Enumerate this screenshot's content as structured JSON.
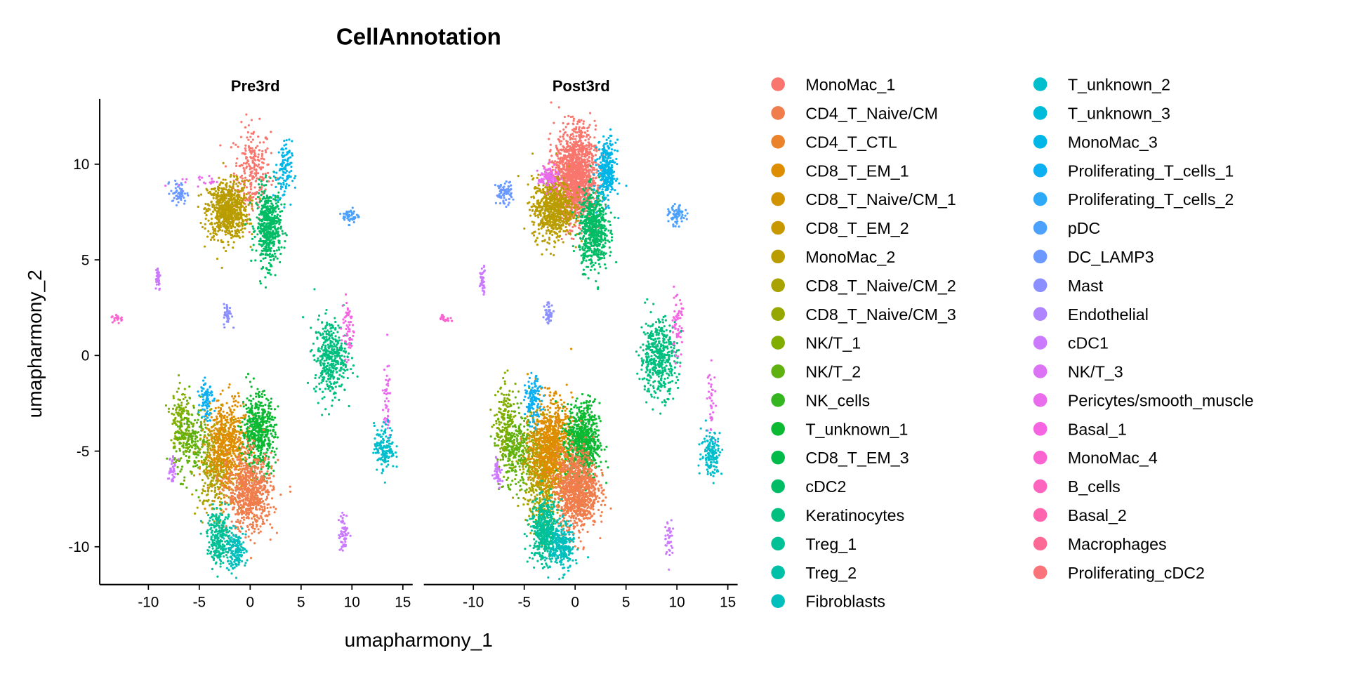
{
  "chart_data": {
    "type": "scatter",
    "title": "CellAnnotation",
    "xlabel": "umapharmony_1",
    "ylabel": "umapharmony_2",
    "xlim": [
      -14.8,
      16
    ],
    "ylim": [
      -12,
      13.4
    ],
    "xticks": [
      -10,
      -5,
      0,
      5,
      10,
      15
    ],
    "yticks": [
      -10,
      -5,
      0,
      5,
      10
    ],
    "grid": false,
    "legend_position": "right",
    "legend": [
      {
        "label": "MonoMac_1",
        "color": "#F8766D"
      },
      {
        "label": "CD4_T_Naive/CM",
        "color": "#F07D4C"
      },
      {
        "label": "CD4_T_CTL",
        "color": "#EB832C"
      },
      {
        "label": "CD8_T_EM_1",
        "color": "#DE8C00"
      },
      {
        "label": "CD8_T_Naive/CM_1",
        "color": "#D29300"
      },
      {
        "label": "CD8_T_EM_2",
        "color": "#C89800"
      },
      {
        "label": "MonoMac_2",
        "color": "#B99D00"
      },
      {
        "label": "CD8_T_Naive/CM_2",
        "color": "#A8A300"
      },
      {
        "label": "CD8_T_Naive/CM_3",
        "color": "#95A700"
      },
      {
        "label": "NK/T_1",
        "color": "#81AD00"
      },
      {
        "label": "NK/T_2",
        "color": "#5EB10E"
      },
      {
        "label": "NK_cells",
        "color": "#35B520"
      },
      {
        "label": "T_unknown_1",
        "color": "#0CB932"
      },
      {
        "label": "CD8_T_EM_3",
        "color": "#00BB4A"
      },
      {
        "label": "cDC2",
        "color": "#00BD65"
      },
      {
        "label": "Keratinocytes",
        "color": "#00BF7F"
      },
      {
        "label": "Treg_1",
        "color": "#00C096"
      },
      {
        "label": "Treg_2",
        "color": "#00C0A8"
      },
      {
        "label": "Fibroblasts",
        "color": "#00BFBC"
      },
      {
        "label": "T_unknown_2",
        "color": "#00BECB"
      },
      {
        "label": "T_unknown_3",
        "color": "#00BAD9"
      },
      {
        "label": "MonoMac_3",
        "color": "#00B6E7"
      },
      {
        "label": "Proliferating_T_cells_1",
        "color": "#0CAFF2"
      },
      {
        "label": "Proliferating_T_cells_2",
        "color": "#2DA9F8"
      },
      {
        "label": "pDC",
        "color": "#4CA1FD"
      },
      {
        "label": "DC_LAMP3",
        "color": "#6B99FF"
      },
      {
        "label": "Mast",
        "color": "#8C8FFF"
      },
      {
        "label": "Endothelial",
        "color": "#AE84FF"
      },
      {
        "label": "cDC1",
        "color": "#CB7AFD"
      },
      {
        "label": "NK/T_3",
        "color": "#DB73F4"
      },
      {
        "label": "Pericytes/smooth_muscle",
        "color": "#E86CEC"
      },
      {
        "label": "Basal_1",
        "color": "#F664E2"
      },
      {
        "label": "MonoMac_4",
        "color": "#F964D0"
      },
      {
        "label": "B_cells",
        "color": "#FC64BE"
      },
      {
        "label": "Basal_2",
        "color": "#FE65AE"
      },
      {
        "label": "Macrophages",
        "color": "#FC6995"
      },
      {
        "label": "Proliferating_cDC2",
        "color": "#F9737A"
      }
    ],
    "panels": [
      {
        "name": "Pre3rd",
        "clusters": [
          {
            "c": 0,
            "x": 0.2,
            "y": 9.6,
            "sx": 0.9,
            "sy": 1.2,
            "n": 260
          },
          {
            "c": 6,
            "x": -2.2,
            "y": 7.6,
            "sx": 1.0,
            "sy": 0.75,
            "n": 700
          },
          {
            "c": 14,
            "x": 1.8,
            "y": 6.7,
            "sx": 0.6,
            "sy": 1.0,
            "n": 500
          },
          {
            "c": 21,
            "x": 3.3,
            "y": 9.6,
            "sx": 0.4,
            "sy": 0.8,
            "n": 110
          },
          {
            "c": 25,
            "x": -7.0,
            "y": 8.5,
            "sx": 0.4,
            "sy": 0.3,
            "n": 60
          },
          {
            "c": 30,
            "x": -5.0,
            "y": 9.1,
            "sx": 1.0,
            "sy": 0.15,
            "n": 20
          },
          {
            "c": 24,
            "x": 9.9,
            "y": 7.3,
            "sx": 0.4,
            "sy": 0.2,
            "n": 50
          },
          {
            "c": 28,
            "x": -9.1,
            "y": 4.1,
            "sx": 0.15,
            "sy": 0.35,
            "n": 40
          },
          {
            "c": 32,
            "x": -13.0,
            "y": 1.95,
            "sx": 0.3,
            "sy": 0.1,
            "n": 20
          },
          {
            "c": 26,
            "x": -2.2,
            "y": 2.1,
            "sx": 0.2,
            "sy": 0.3,
            "n": 40
          },
          {
            "c": 15,
            "x": 7.9,
            "y": -0.1,
            "sx": 0.8,
            "sy": 1.0,
            "n": 400
          },
          {
            "c": 31,
            "x": 9.6,
            "y": 1.5,
            "sx": 0.3,
            "sy": 0.8,
            "n": 60
          },
          {
            "c": 30,
            "x": 13.4,
            "y": -2.5,
            "sx": 0.2,
            "sy": 1.0,
            "n": 50
          },
          {
            "c": 19,
            "x": 13.2,
            "y": -4.8,
            "sx": 0.5,
            "sy": 0.6,
            "n": 150
          },
          {
            "c": 28,
            "x": 9.2,
            "y": -9.3,
            "sx": 0.25,
            "sy": 0.5,
            "n": 60
          },
          {
            "c": 9,
            "x": -6.8,
            "y": -3.5,
            "sx": 0.5,
            "sy": 1.0,
            "n": 150
          },
          {
            "c": 10,
            "x": -5.6,
            "y": -4.6,
            "sx": 0.9,
            "sy": 0.9,
            "n": 200
          },
          {
            "c": 7,
            "x": -3.5,
            "y": -5.9,
            "sx": 0.8,
            "sy": 1.2,
            "n": 300
          },
          {
            "c": 3,
            "x": -2.2,
            "y": -4.8,
            "sx": 1.0,
            "sy": 1.2,
            "n": 600
          },
          {
            "c": 12,
            "x": 0.8,
            "y": -4.0,
            "sx": 0.8,
            "sy": 1.0,
            "n": 500
          },
          {
            "c": 1,
            "x": 0.0,
            "y": -7.2,
            "sx": 1.1,
            "sy": 1.0,
            "n": 700
          },
          {
            "c": 16,
            "x": -3.0,
            "y": -9.5,
            "sx": 0.6,
            "sy": 0.7,
            "n": 250
          },
          {
            "c": 18,
            "x": -1.4,
            "y": -10.2,
            "sx": 0.5,
            "sy": 0.5,
            "n": 150
          },
          {
            "c": 22,
            "x": -4.3,
            "y": -2.2,
            "sx": 0.3,
            "sy": 0.6,
            "n": 80
          },
          {
            "c": 28,
            "x": -7.7,
            "y": -5.9,
            "sx": 0.2,
            "sy": 0.4,
            "n": 40
          }
        ]
      },
      {
        "name": "Post3rd",
        "clusters": [
          {
            "c": 0,
            "x": 0.0,
            "y": 9.4,
            "sx": 1.0,
            "sy": 1.2,
            "n": 1500
          },
          {
            "c": 6,
            "x": -2.2,
            "y": 7.7,
            "sx": 1.0,
            "sy": 0.8,
            "n": 700
          },
          {
            "c": 14,
            "x": 1.8,
            "y": 6.6,
            "sx": 0.7,
            "sy": 1.0,
            "n": 600
          },
          {
            "c": 21,
            "x": 3.1,
            "y": 9.6,
            "sx": 0.45,
            "sy": 0.8,
            "n": 300
          },
          {
            "c": 30,
            "x": -2.6,
            "y": 9.3,
            "sx": 0.5,
            "sy": 0.3,
            "n": 100
          },
          {
            "c": 25,
            "x": -7.0,
            "y": 8.5,
            "sx": 0.4,
            "sy": 0.3,
            "n": 80
          },
          {
            "c": 24,
            "x": 10.0,
            "y": 7.3,
            "sx": 0.4,
            "sy": 0.25,
            "n": 70
          },
          {
            "c": 28,
            "x": -9.1,
            "y": 4.0,
            "sx": 0.15,
            "sy": 0.35,
            "n": 40
          },
          {
            "c": 32,
            "x": -12.8,
            "y": 1.95,
            "sx": 0.3,
            "sy": 0.1,
            "n": 20
          },
          {
            "c": 26,
            "x": -2.6,
            "y": 2.2,
            "sx": 0.2,
            "sy": 0.3,
            "n": 40
          },
          {
            "c": 15,
            "x": 8.2,
            "y": -0.1,
            "sx": 0.9,
            "sy": 1.0,
            "n": 450
          },
          {
            "c": 31,
            "x": 10.0,
            "y": 1.5,
            "sx": 0.3,
            "sy": 0.8,
            "n": 60
          },
          {
            "c": 30,
            "x": 13.4,
            "y": -2.5,
            "sx": 0.2,
            "sy": 1.0,
            "n": 40
          },
          {
            "c": 19,
            "x": 13.4,
            "y": -5.1,
            "sx": 0.5,
            "sy": 0.6,
            "n": 150
          },
          {
            "c": 28,
            "x": 9.2,
            "y": -9.5,
            "sx": 0.2,
            "sy": 0.5,
            "n": 40
          },
          {
            "c": 9,
            "x": -6.8,
            "y": -3.8,
            "sx": 0.5,
            "sy": 1.1,
            "n": 200
          },
          {
            "c": 10,
            "x": -5.6,
            "y": -5.0,
            "sx": 0.9,
            "sy": 1.0,
            "n": 300
          },
          {
            "c": 7,
            "x": -3.3,
            "y": -6.2,
            "sx": 0.9,
            "sy": 1.3,
            "n": 500
          },
          {
            "c": 3,
            "x": -2.3,
            "y": -4.8,
            "sx": 1.0,
            "sy": 1.2,
            "n": 900
          },
          {
            "c": 12,
            "x": 0.8,
            "y": -4.5,
            "sx": 0.8,
            "sy": 1.0,
            "n": 700
          },
          {
            "c": 1,
            "x": 0.2,
            "y": -7.0,
            "sx": 1.0,
            "sy": 1.0,
            "n": 1000
          },
          {
            "c": 16,
            "x": -3.0,
            "y": -9.2,
            "sx": 0.7,
            "sy": 0.8,
            "n": 450
          },
          {
            "c": 18,
            "x": -1.3,
            "y": -10.0,
            "sx": 0.6,
            "sy": 0.6,
            "n": 250
          },
          {
            "c": 22,
            "x": -4.1,
            "y": -2.4,
            "sx": 0.4,
            "sy": 0.6,
            "n": 120
          },
          {
            "c": 28,
            "x": -7.6,
            "y": -6.0,
            "sx": 0.2,
            "sy": 0.4,
            "n": 40
          }
        ]
      }
    ]
  }
}
